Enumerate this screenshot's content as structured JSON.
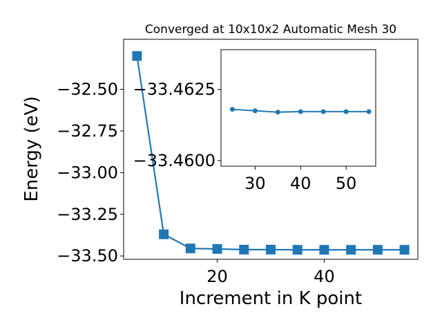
{
  "chart_data": [
    {
      "type": "line",
      "title": "Converged at 10x10x2 Automatic Mesh 30",
      "xlabel": "Increment in K point",
      "ylabel": "Energy (eV)",
      "xlim": [
        2.5,
        57.5
      ],
      "ylim": [
        -33.52,
        -32.2
      ],
      "xticks": [
        20,
        40
      ],
      "yticks": [
        -32.5,
        -32.75,
        -33.0,
        -33.25,
        -33.5
      ],
      "ytick_labels": [
        "−32.50",
        "−32.75",
        "−33.00",
        "−33.25",
        "−33.50"
      ],
      "marker": "square",
      "color": "#1f77b4",
      "x": [
        5,
        10,
        15,
        20,
        25,
        30,
        35,
        40,
        45,
        50,
        55
      ],
      "y": [
        -32.3,
        -33.37,
        -33.455,
        -33.458,
        -33.462,
        -33.462,
        -33.463,
        -33.463,
        -33.463,
        -33.463,
        -33.463
      ]
    },
    {
      "type": "line",
      "inset": true,
      "xlim": [
        22.5,
        56.5
      ],
      "ylim": [
        -33.4598,
        -33.4639
      ],
      "xticks": [
        30,
        40,
        50
      ],
      "yticks": [
        -33.4625,
        -33.46
      ],
      "ytick_labels": [
        "−33.4625",
        "−33.4600"
      ],
      "marker": "circle",
      "color": "#1f77b4",
      "x": [
        25,
        30,
        35,
        40,
        45,
        50,
        55
      ],
      "y": [
        -33.4618,
        -33.46175,
        -33.4617,
        -33.46172,
        -33.46172,
        -33.46172,
        -33.46172
      ]
    }
  ]
}
